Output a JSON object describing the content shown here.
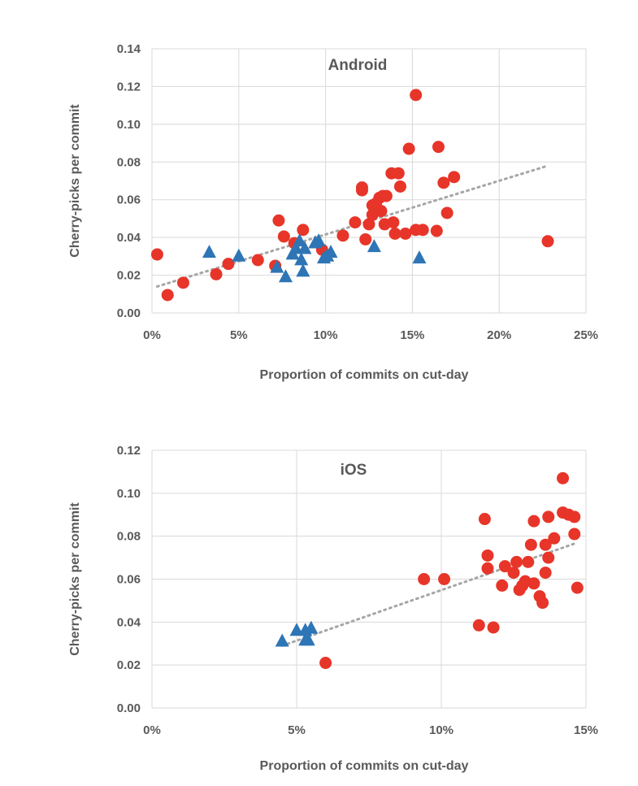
{
  "chart_data": [
    {
      "type": "scatter",
      "title": "Android",
      "xlabel": "Proportion of commits on cut-day",
      "ylabel": "Cherry-picks per commit",
      "xlim": [
        0,
        0.25
      ],
      "ylim": [
        0,
        0.14
      ],
      "x_ticks": [
        0,
        0.05,
        0.1,
        0.15,
        0.2,
        0.25
      ],
      "x_tick_labels": [
        "0%",
        "5%",
        "10%",
        "15%",
        "20%",
        "25%"
      ],
      "y_ticks": [
        0,
        0.02,
        0.04,
        0.06,
        0.08,
        0.1,
        0.12,
        0.14
      ],
      "y_tick_labels": [
        "0.00",
        "0.02",
        "0.04",
        "0.06",
        "0.08",
        "0.10",
        "0.12",
        "0.14"
      ],
      "grid": true,
      "trendline": {
        "style": "dotted",
        "color": "#a6a6a6",
        "from": [
          0.003,
          0.014
        ],
        "to": [
          0.228,
          0.078
        ]
      },
      "series": [
        {
          "marker": "circle",
          "color": "#e8352a",
          "points": [
            [
              0.003,
              0.031
            ],
            [
              0.009,
              0.0095
            ],
            [
              0.018,
              0.016
            ],
            [
              0.037,
              0.0205
            ],
            [
              0.044,
              0.026
            ],
            [
              0.061,
              0.028
            ],
            [
              0.071,
              0.025
            ],
            [
              0.073,
              0.049
            ],
            [
              0.076,
              0.0405
            ],
            [
              0.082,
              0.037
            ],
            [
              0.087,
              0.044
            ],
            [
              0.098,
              0.0335
            ],
            [
              0.11,
              0.041
            ],
            [
              0.117,
              0.048
            ],
            [
              0.121,
              0.065
            ],
            [
              0.121,
              0.0665
            ],
            [
              0.123,
              0.039
            ],
            [
              0.125,
              0.047
            ],
            [
              0.127,
              0.052
            ],
            [
              0.127,
              0.057
            ],
            [
              0.129,
              0.058
            ],
            [
              0.131,
              0.061
            ],
            [
              0.132,
              0.054
            ],
            [
              0.133,
              0.062
            ],
            [
              0.134,
              0.047
            ],
            [
              0.135,
              0.062
            ],
            [
              0.138,
              0.074
            ],
            [
              0.139,
              0.048
            ],
            [
              0.14,
              0.042
            ],
            [
              0.142,
              0.074
            ],
            [
              0.143,
              0.067
            ],
            [
              0.146,
              0.042
            ],
            [
              0.148,
              0.087
            ],
            [
              0.152,
              0.1155
            ],
            [
              0.152,
              0.044
            ],
            [
              0.156,
              0.044
            ],
            [
              0.164,
              0.0435
            ],
            [
              0.165,
              0.088
            ],
            [
              0.168,
              0.069
            ],
            [
              0.17,
              0.053
            ],
            [
              0.174,
              0.072
            ],
            [
              0.228,
              0.038
            ]
          ]
        },
        {
          "marker": "triangle",
          "color": "#2e75b6",
          "points": [
            [
              0.033,
              0.032
            ],
            [
              0.05,
              0.03
            ],
            [
              0.072,
              0.024
            ],
            [
              0.077,
              0.019
            ],
            [
              0.081,
              0.031
            ],
            [
              0.083,
              0.034
            ],
            [
              0.085,
              0.038
            ],
            [
              0.086,
              0.028
            ],
            [
              0.087,
              0.022
            ],
            [
              0.088,
              0.034
            ],
            [
              0.094,
              0.037
            ],
            [
              0.096,
              0.038
            ],
            [
              0.099,
              0.029
            ],
            [
              0.101,
              0.03
            ],
            [
              0.103,
              0.032
            ],
            [
              0.128,
              0.035
            ],
            [
              0.154,
              0.029
            ]
          ]
        }
      ]
    },
    {
      "type": "scatter",
      "title": "iOS",
      "xlabel": "Proportion of commits on cut-day",
      "ylabel": "Cherry-picks per commit",
      "xlim": [
        0,
        0.15
      ],
      "ylim": [
        0,
        0.12
      ],
      "x_ticks": [
        0,
        0.05,
        0.1,
        0.15
      ],
      "x_tick_labels": [
        "0%",
        "5%",
        "10%",
        "15%"
      ],
      "y_ticks": [
        0,
        0.02,
        0.04,
        0.06,
        0.08,
        0.1,
        0.12
      ],
      "y_tick_labels": [
        "0.00",
        "0.02",
        "0.04",
        "0.06",
        "0.08",
        "0.10",
        "0.12"
      ],
      "grid": true,
      "trendline": {
        "style": "dotted",
        "color": "#a6a6a6",
        "from": [
          0.045,
          0.029
        ],
        "to": [
          0.147,
          0.077
        ]
      },
      "series": [
        {
          "marker": "circle",
          "color": "#e8352a",
          "points": [
            [
              0.06,
              0.021
            ],
            [
              0.094,
              0.06
            ],
            [
              0.101,
              0.06
            ],
            [
              0.113,
              0.0385
            ],
            [
              0.115,
              0.088
            ],
            [
              0.116,
              0.071
            ],
            [
              0.116,
              0.065
            ],
            [
              0.118,
              0.0375
            ],
            [
              0.121,
              0.057
            ],
            [
              0.122,
              0.066
            ],
            [
              0.125,
              0.063
            ],
            [
              0.126,
              0.068
            ],
            [
              0.127,
              0.055
            ],
            [
              0.128,
              0.057
            ],
            [
              0.129,
              0.059
            ],
            [
              0.13,
              0.068
            ],
            [
              0.131,
              0.076
            ],
            [
              0.132,
              0.058
            ],
            [
              0.132,
              0.087
            ],
            [
              0.134,
              0.052
            ],
            [
              0.135,
              0.049
            ],
            [
              0.136,
              0.076
            ],
            [
              0.136,
              0.063
            ],
            [
              0.137,
              0.07
            ],
            [
              0.137,
              0.089
            ],
            [
              0.139,
              0.079
            ],
            [
              0.142,
              0.091
            ],
            [
              0.142,
              0.107
            ],
            [
              0.144,
              0.09
            ],
            [
              0.146,
              0.089
            ],
            [
              0.146,
              0.081
            ],
            [
              0.147,
              0.056
            ]
          ]
        },
        {
          "marker": "triangle",
          "color": "#2e75b6",
          "points": [
            [
              0.045,
              0.031
            ],
            [
              0.05,
              0.036
            ],
            [
              0.053,
              0.036
            ],
            [
              0.053,
              0.0315
            ],
            [
              0.054,
              0.0315
            ],
            [
              0.055,
              0.037
            ]
          ]
        }
      ]
    }
  ]
}
